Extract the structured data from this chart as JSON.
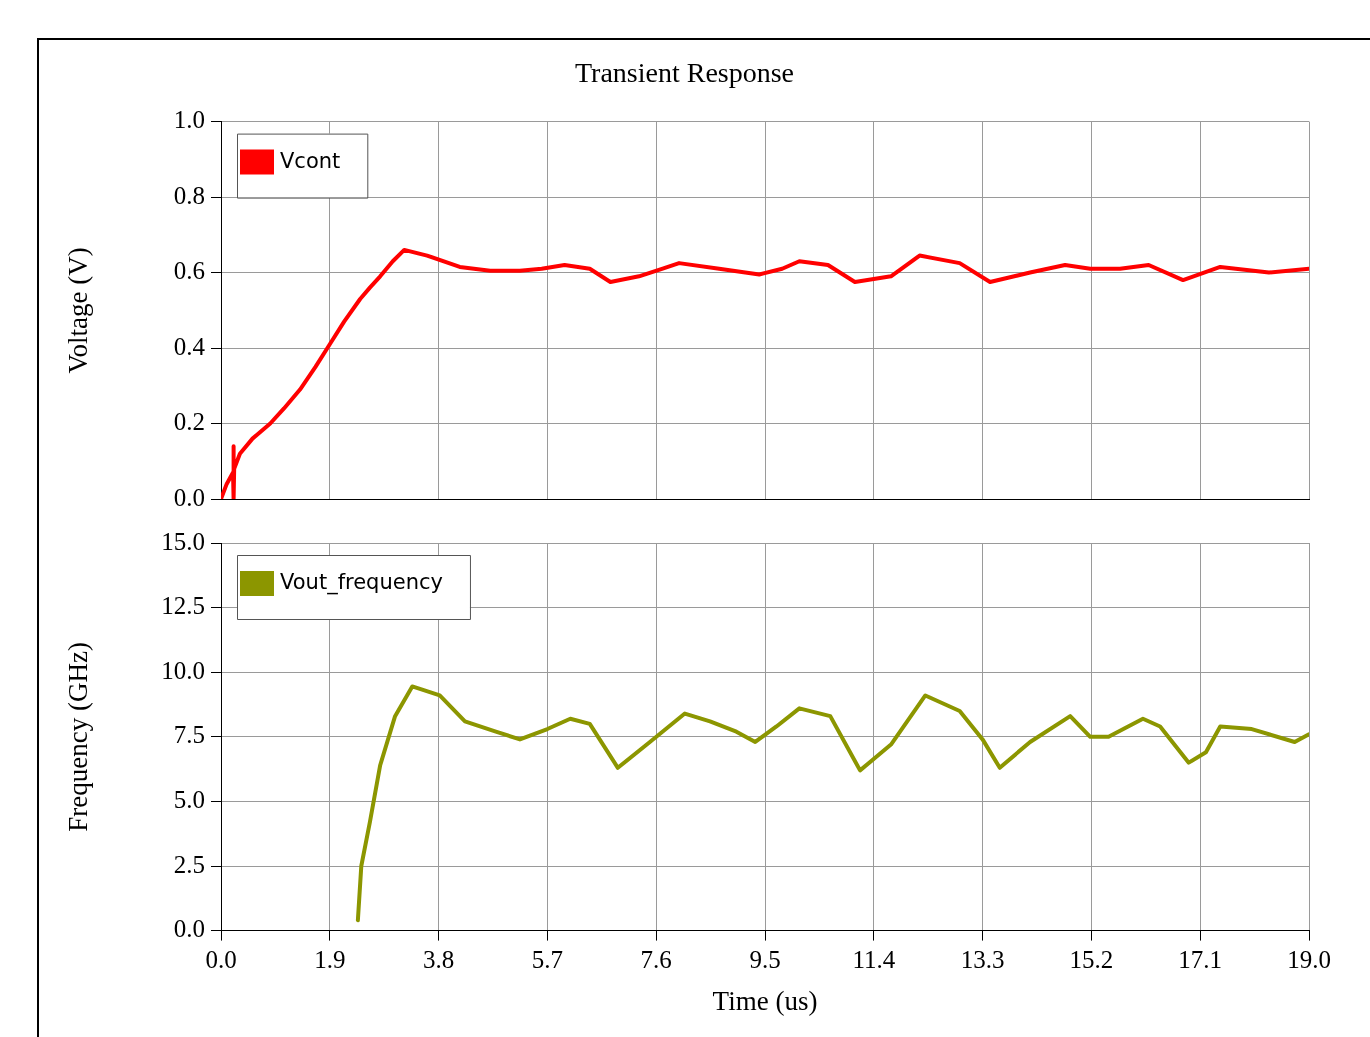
{
  "chart_data": [
    {
      "type": "line",
      "title": "Transient Response",
      "ylabel": "Voltage (V)",
      "xlim": [
        0,
        19
      ],
      "xticks": [
        0,
        1.9,
        3.8,
        5.7,
        7.6,
        9.5,
        11.4,
        13.3,
        15.2,
        17.1,
        19
      ],
      "ylim": [
        0,
        1
      ],
      "yticks": [
        {
          "value": 0,
          "label": "0.0"
        },
        {
          "value": 0.2,
          "label": "0.2"
        },
        {
          "value": 0.4,
          "label": "0.4"
        },
        {
          "value": 0.6,
          "label": "0.6"
        },
        {
          "value": 0.8,
          "label": "0.8"
        },
        {
          "value": 1,
          "label": "1.0"
        }
      ],
      "series": [
        {
          "name": "Vcont",
          "color": "#ff0000",
          "x": [
            0,
            0.1,
            0.21,
            0.22,
            0.22,
            0.23,
            0.33,
            0.55,
            0.86,
            1.1,
            1.38,
            1.65,
            1.9,
            2.15,
            2.43,
            2.6,
            2.78,
            3.0,
            3.2,
            3.6,
            4.17,
            4.7,
            5.22,
            5.6,
            6.0,
            6.44,
            6.8,
            7.3,
            7.7,
            8.0,
            8.7,
            9.4,
            9.8,
            10.1,
            10.6,
            11.07,
            11.7,
            12.2,
            12.9,
            13.43,
            14.13,
            14.74,
            15.18,
            15.7,
            16.2,
            16.8,
            17.45,
            18.3,
            19
          ],
          "values": [
            0,
            0.04,
            0.07,
            0.14,
            0,
            0.08,
            0.12,
            0.16,
            0.2,
            0.24,
            0.29,
            0.35,
            0.41,
            0.47,
            0.53,
            0.56,
            0.59,
            0.63,
            0.66,
            0.645,
            0.615,
            0.605,
            0.605,
            0.61,
            0.62,
            0.61,
            0.575,
            0.59,
            0.61,
            0.625,
            0.61,
            0.595,
            0.61,
            0.63,
            0.62,
            0.575,
            0.59,
            0.645,
            0.625,
            0.575,
            0.6,
            0.62,
            0.61,
            0.61,
            0.62,
            0.58,
            0.615,
            0.6,
            0.61
          ]
        }
      ],
      "grid": true,
      "legend": "top left",
      "tick_labels": "y",
      "marker": "none",
      "line_style": "solid"
    },
    {
      "type": "line",
      "xlabel": "Time (us)",
      "ylabel": "Frequency (GHz)",
      "xlim": [
        0,
        19
      ],
      "xticks": [
        {
          "value": 0,
          "label": "0.0"
        },
        {
          "value": 1.9,
          "label": "1.9"
        },
        {
          "value": 3.8,
          "label": "3.8"
        },
        {
          "value": 5.7,
          "label": "5.7"
        },
        {
          "value": 7.6,
          "label": "7.6"
        },
        {
          "value": 9.5,
          "label": "9.5"
        },
        {
          "value": 11.4,
          "label": "11.4"
        },
        {
          "value": 13.3,
          "label": "13.3"
        },
        {
          "value": 15.2,
          "label": "15.2"
        },
        {
          "value": 17.1,
          "label": "17.1"
        },
        {
          "value": 19,
          "label": "19.0"
        }
      ],
      "ylim": [
        0,
        15
      ],
      "yticks": [
        {
          "value": 0,
          "label": "0.0"
        },
        {
          "value": 2.5,
          "label": "2.5"
        },
        {
          "value": 5,
          "label": "5.0"
        },
        {
          "value": 7.5,
          "label": "7.5"
        },
        {
          "value": 10,
          "label": "10.0"
        },
        {
          "value": 12.5,
          "label": "12.5"
        },
        {
          "value": 15,
          "label": "15.0"
        }
      ],
      "series": [
        {
          "name": "Vout_frequency",
          "color": "#8c9600",
          "x": [
            2.39,
            2.45,
            2.6,
            2.78,
            3.04,
            3.34,
            3.82,
            4.26,
            4.8,
            5.22,
            5.7,
            6.1,
            6.44,
            6.93,
            7.49,
            8.1,
            8.54,
            9.0,
            9.33,
            9.7,
            10.1,
            10.64,
            11.16,
            11.7,
            12.3,
            12.9,
            13.3,
            13.6,
            14.13,
            14.83,
            15.18,
            15.5,
            16.1,
            16.4,
            16.9,
            17.2,
            17.45,
            18.0,
            18.75,
            19
          ],
          "values": [
            0.4,
            2.5,
            4.2,
            6.4,
            8.3,
            9.45,
            9.1,
            8.1,
            7.7,
            7.4,
            7.8,
            8.2,
            8.0,
            6.3,
            7.3,
            8.4,
            8.1,
            7.7,
            7.3,
            7.9,
            8.6,
            8.3,
            6.2,
            7.2,
            9.1,
            8.5,
            7.4,
            6.3,
            7.3,
            8.3,
            7.5,
            7.5,
            8.2,
            7.9,
            6.5,
            6.9,
            7.9,
            7.8,
            7.3,
            7.6
          ]
        }
      ],
      "grid": true,
      "legend": "top left",
      "marker": "none",
      "line_style": "solid"
    }
  ]
}
